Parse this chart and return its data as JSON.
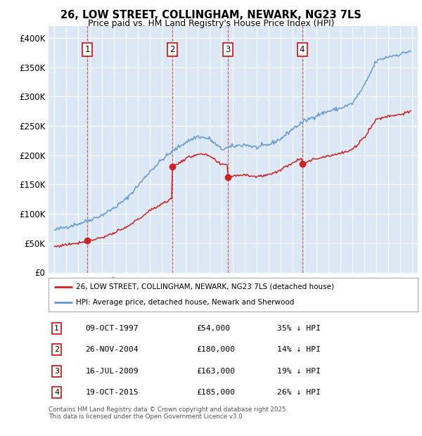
{
  "title_line1": "26, LOW STREET, COLLINGHAM, NEWARK, NG23 7LS",
  "title_line2": "Price paid vs. HM Land Registry's House Price Index (HPI)",
  "plot_bg_color": "#dce8f5",
  "hpi_color": "#6699cc",
  "price_color": "#cc2222",
  "purchase_years": [
    1997.77,
    2004.9,
    2009.54,
    2015.79
  ],
  "purchase_prices": [
    54000,
    180000,
    163000,
    185000
  ],
  "purchase_labels": [
    "1",
    "2",
    "3",
    "4"
  ],
  "purchase_info": [
    {
      "label": "1",
      "date": "09-OCT-1997",
      "price": "£54,000",
      "hpi": "35% ↓ HPI"
    },
    {
      "label": "2",
      "date": "26-NOV-2004",
      "price": "£180,000",
      "hpi": "14% ↓ HPI"
    },
    {
      "label": "3",
      "date": "16-JUL-2009",
      "price": "£163,000",
      "hpi": "19% ↓ HPI"
    },
    {
      "label": "4",
      "date": "19-OCT-2015",
      "price": "£185,000",
      "hpi": "26% ↓ HPI"
    }
  ],
  "legend_property": "26, LOW STREET, COLLINGHAM, NEWARK, NG23 7LS (detached house)",
  "legend_hpi": "HPI: Average price, detached house, Newark and Sherwood",
  "footnote": "Contains HM Land Registry data © Crown copyright and database right 2025.\nThis data is licensed under the Open Government Licence v3.0.",
  "ylim": [
    0,
    420000
  ],
  "yticks": [
    0,
    50000,
    100000,
    150000,
    200000,
    250000,
    300000,
    350000,
    400000
  ],
  "ytick_labels": [
    "£0",
    "£50K",
    "£100K",
    "£150K",
    "£200K",
    "£250K",
    "£300K",
    "£350K",
    "£400K"
  ],
  "hpi_anchors_t": [
    1995.0,
    1996.0,
    1997.0,
    1998.0,
    1999.0,
    2000.0,
    2001.0,
    2002.0,
    2003.0,
    2004.0,
    2005.0,
    2006.0,
    2007.0,
    2008.0,
    2009.0,
    2010.0,
    2011.0,
    2012.0,
    2013.0,
    2014.0,
    2015.0,
    2016.0,
    2017.0,
    2018.0,
    2019.0,
    2020.0,
    2021.0,
    2022.0,
    2023.0,
    2024.0,
    2024.9
  ],
  "hpi_anchors_p": [
    72000,
    78000,
    83000,
    90000,
    98000,
    110000,
    125000,
    148000,
    172000,
    192000,
    208000,
    222000,
    232000,
    228000,
    210000,
    215000,
    218000,
    213000,
    218000,
    228000,
    245000,
    258000,
    268000,
    275000,
    280000,
    288000,
    318000,
    360000,
    368000,
    372000,
    378000
  ]
}
